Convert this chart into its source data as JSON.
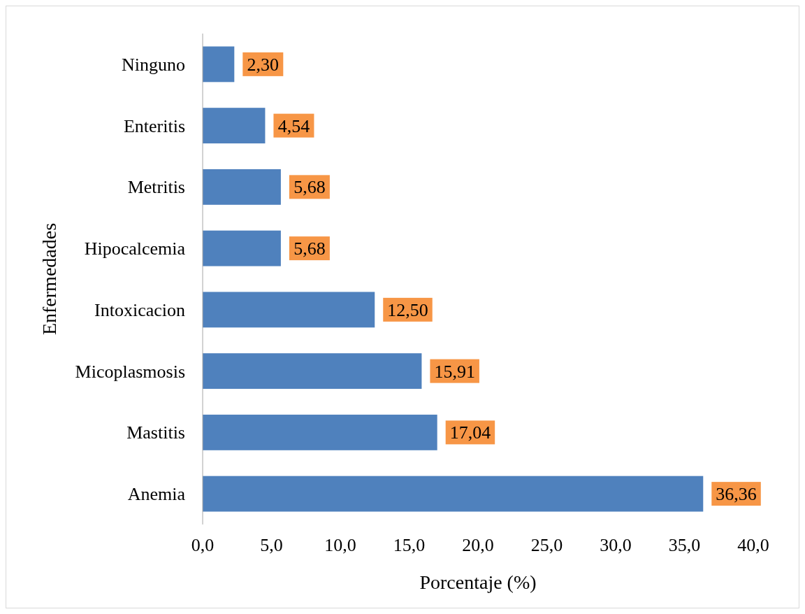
{
  "chart_data": {
    "type": "bar",
    "orientation": "horizontal",
    "xlabel": "Porcentaje (%)",
    "ylabel": "Enfermedades",
    "categories": [
      "Ninguno",
      "Enteritis",
      "Metritis",
      "Hipocalcemia",
      "Intoxicacion",
      "Micoplasmosis",
      "Mastitis",
      "Anemia"
    ],
    "values": [
      2.3,
      4.54,
      5.68,
      5.68,
      12.5,
      15.91,
      17.04,
      36.36
    ],
    "value_labels": [
      "2,30",
      "4,54",
      "5,68",
      "5,68",
      "12,50",
      "15,91",
      "17,04",
      "36,36"
    ],
    "color": "#4f81bd",
    "xlim": [
      0,
      40
    ],
    "xticks": [
      {
        "value": 0,
        "label": "0,0"
      },
      {
        "value": 5,
        "label": "5,0"
      },
      {
        "value": 10,
        "label": "10,0"
      },
      {
        "value": 15,
        "label": "15,0"
      },
      {
        "value": 20,
        "label": "20,0"
      },
      {
        "value": 25,
        "label": "25,0"
      },
      {
        "value": 30,
        "label": "30,0"
      },
      {
        "value": 35,
        "label": "35,0"
      },
      {
        "value": 40,
        "label": "40,0"
      }
    ],
    "grid": false
  }
}
